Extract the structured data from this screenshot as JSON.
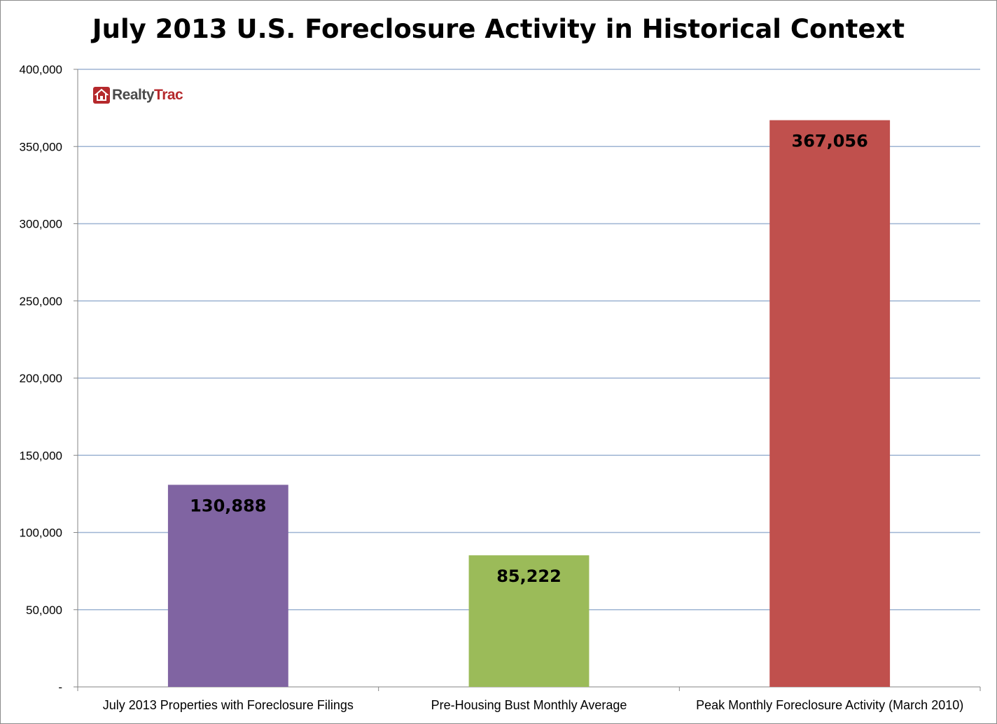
{
  "chart_data": {
    "type": "bar",
    "title": "July 2013 U.S. Foreclosure Activity in Historical Context",
    "categories": [
      "July 2013 Properties with Foreclosure Filings",
      "Pre-Housing Bust Monthly Average",
      "Peak Monthly Foreclosure Activity (March 2010)"
    ],
    "values": [
      130888,
      85222,
      367056
    ],
    "value_labels": [
      "130,888",
      "85,222",
      "367,056"
    ],
    "colors": [
      "#8064a2",
      "#9bbb59",
      "#c0504d"
    ],
    "ylim": [
      0,
      400000
    ],
    "yticks": [
      0,
      50000,
      100000,
      150000,
      200000,
      250000,
      300000,
      350000,
      400000
    ],
    "ytick_labels": [
      "-",
      "50,000",
      "100,000",
      "150,000",
      "200,000",
      "250,000",
      "300,000",
      "350,000",
      "400,000"
    ],
    "grid": true,
    "legend": "none",
    "xlabel": "",
    "ylabel": ""
  },
  "logo": {
    "name": "house-icon",
    "text_realty": "Realty",
    "text_trac": "Trac"
  }
}
